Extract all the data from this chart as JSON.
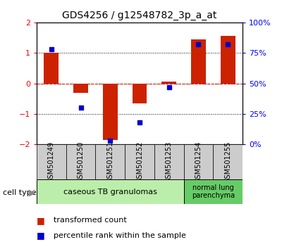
{
  "title": "GDS4256 / g12548782_3p_a_at",
  "samples": [
    "GSM501249",
    "GSM501250",
    "GSM501251",
    "GSM501252",
    "GSM501253",
    "GSM501254",
    "GSM501255"
  ],
  "transformed_counts": [
    1.0,
    -0.3,
    -1.85,
    -0.65,
    0.05,
    1.45,
    1.55
  ],
  "percentile_ranks": [
    78,
    30,
    3,
    18,
    47,
    82,
    82
  ],
  "ylim_left": [
    -2,
    2
  ],
  "ylim_right": [
    0,
    100
  ],
  "yticks_left": [
    -2,
    -1,
    0,
    1,
    2
  ],
  "yticks_right": [
    0,
    25,
    50,
    75,
    100
  ],
  "ytick_labels_right": [
    "0%",
    "25%",
    "50%",
    "75%",
    "100%"
  ],
  "bar_color": "#cc2200",
  "dot_color": "#0000cc",
  "hline_color": "#cc2200",
  "cell_group1_color": "#bbeeaa",
  "cell_group2_color": "#66cc66",
  "bg_sample_box": "#cccccc",
  "bg_plot": "#ffffff",
  "title_fontsize": 10,
  "tick_fontsize": 8,
  "sample_fontsize": 7,
  "legend_fontsize": 8,
  "bar_width": 0.5,
  "cell_type_label": "cell type",
  "cell_group1_label": "caseous TB granulomas",
  "cell_group2_label": "normal lung\nparenchyma",
  "legend_label1": "transformed count",
  "legend_label2": "percentile rank within the sample"
}
